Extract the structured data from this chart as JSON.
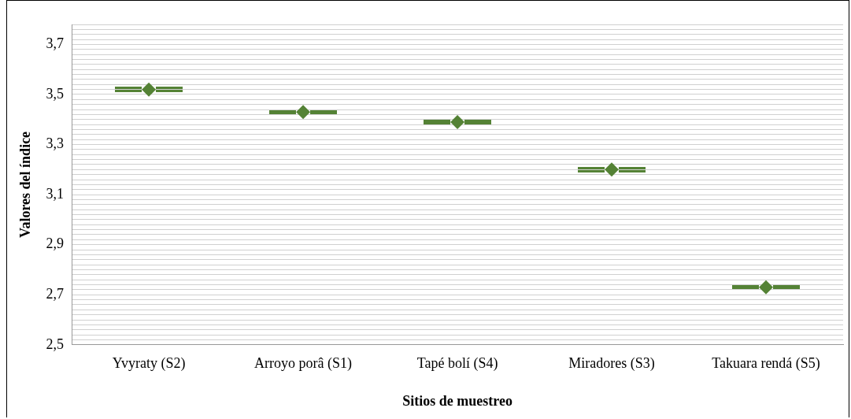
{
  "chart_data": {
    "type": "scatter",
    "xlabel": "Sitios de muestreo",
    "ylabel": "Valores del índice",
    "categories": [
      "Yvyraty (S2)",
      "Arroyo porâ (S1)",
      "Tapé bolí (S4)",
      "Miradores (S3)",
      "Takuara rendá (S5)"
    ],
    "series": [
      {
        "color": "#548235",
        "values": [
          3.52,
          3.43,
          3.39,
          3.2,
          2.73
        ]
      }
    ],
    "marker": "diamond",
    "grid": "y",
    "legend": false,
    "ylim": [
      2.5,
      3.78
    ],
    "yticks": [
      {
        "value": 2.5,
        "label": "2,5"
      },
      {
        "value": 2.52,
        "label": null
      },
      {
        "value": 2.54,
        "label": null
      },
      {
        "value": 2.56,
        "label": null
      },
      {
        "value": 2.58,
        "label": null
      },
      {
        "value": 2.6,
        "label": null
      },
      {
        "value": 2.62,
        "label": null
      },
      {
        "value": 2.64,
        "label": null
      },
      {
        "value": 2.66,
        "label": null
      },
      {
        "value": 2.68,
        "label": null
      },
      {
        "value": 2.7,
        "label": "2,7"
      },
      {
        "value": 2.72,
        "label": null
      },
      {
        "value": 2.74,
        "label": null
      },
      {
        "value": 2.76,
        "label": null
      },
      {
        "value": 2.78,
        "label": null
      },
      {
        "value": 2.8,
        "label": null
      },
      {
        "value": 2.82,
        "label": null
      },
      {
        "value": 2.84,
        "label": null
      },
      {
        "value": 2.86,
        "label": null
      },
      {
        "value": 2.88,
        "label": null
      },
      {
        "value": 2.9,
        "label": "2,9"
      },
      {
        "value": 2.92,
        "label": null
      },
      {
        "value": 2.94,
        "label": null
      },
      {
        "value": 2.96,
        "label": null
      },
      {
        "value": 2.98,
        "label": null
      },
      {
        "value": 3.0,
        "label": null
      },
      {
        "value": 3.02,
        "label": null
      },
      {
        "value": 3.04,
        "label": null
      },
      {
        "value": 3.06,
        "label": null
      },
      {
        "value": 3.08,
        "label": null
      },
      {
        "value": 3.1,
        "label": "3,1"
      },
      {
        "value": 3.12,
        "label": null
      },
      {
        "value": 3.14,
        "label": null
      },
      {
        "value": 3.16,
        "label": null
      },
      {
        "value": 3.18,
        "label": null
      },
      {
        "value": 3.2,
        "label": null
      },
      {
        "value": 3.22,
        "label": null
      },
      {
        "value": 3.24,
        "label": null
      },
      {
        "value": 3.26,
        "label": null
      },
      {
        "value": 3.28,
        "label": null
      },
      {
        "value": 3.3,
        "label": "3,3"
      },
      {
        "value": 3.32,
        "label": null
      },
      {
        "value": 3.34,
        "label": null
      },
      {
        "value": 3.36,
        "label": null
      },
      {
        "value": 3.38,
        "label": null
      },
      {
        "value": 3.4,
        "label": null
      },
      {
        "value": 3.42,
        "label": null
      },
      {
        "value": 3.44,
        "label": null
      },
      {
        "value": 3.46,
        "label": null
      },
      {
        "value": 3.48,
        "label": null
      },
      {
        "value": 3.5,
        "label": "3,5"
      },
      {
        "value": 3.52,
        "label": null
      },
      {
        "value": 3.54,
        "label": null
      },
      {
        "value": 3.56,
        "label": null
      },
      {
        "value": 3.58,
        "label": null
      },
      {
        "value": 3.6,
        "label": null
      },
      {
        "value": 3.62,
        "label": null
      },
      {
        "value": 3.64,
        "label": null
      },
      {
        "value": 3.66,
        "label": null
      },
      {
        "value": 3.68,
        "label": null
      },
      {
        "value": 3.7,
        "label": "3,7"
      },
      {
        "value": 3.72,
        "label": null
      },
      {
        "value": 3.74,
        "label": null
      },
      {
        "value": 3.76,
        "label": null
      },
      {
        "value": 3.78,
        "label": null
      }
    ]
  }
}
